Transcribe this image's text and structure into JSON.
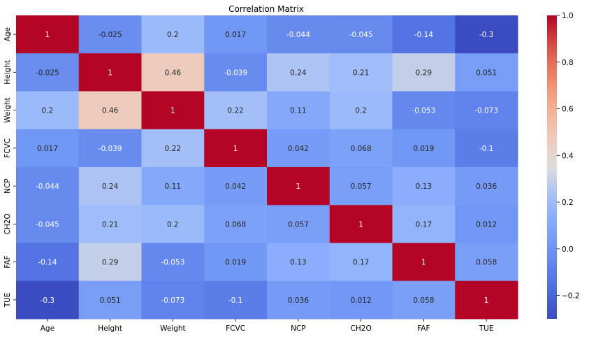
{
  "chart_data": {
    "type": "heatmap",
    "title": "Correlation Matrix",
    "labels": [
      "Age",
      "Height",
      "Weight",
      "FCVC",
      "NCP",
      "CH2O",
      "FAF",
      "TUE"
    ],
    "values": [
      [
        1,
        -0.025,
        0.2,
        0.017,
        -0.044,
        -0.045,
        -0.14,
        -0.3
      ],
      [
        -0.025,
        1,
        0.46,
        -0.039,
        0.24,
        0.21,
        0.29,
        0.051
      ],
      [
        0.2,
        0.46,
        1,
        0.22,
        0.11,
        0.2,
        -0.053,
        -0.073
      ],
      [
        0.017,
        -0.039,
        0.22,
        1,
        0.042,
        0.068,
        0.019,
        -0.1
      ],
      [
        -0.044,
        0.24,
        0.11,
        0.042,
        1,
        0.057,
        0.13,
        0.036
      ],
      [
        -0.045,
        0.21,
        0.2,
        0.068,
        0.057,
        1,
        0.17,
        0.012
      ],
      [
        -0.14,
        0.29,
        -0.053,
        0.019,
        0.13,
        0.17,
        1,
        0.058
      ],
      [
        -0.3,
        0.051,
        -0.073,
        -0.1,
        0.036,
        0.012,
        0.058,
        1
      ]
    ],
    "colormap": "coolwarm",
    "vmin": -0.3,
    "vmax": 1.0,
    "colorbar_ticks": [
      -0.2,
      0.0,
      0.2,
      0.4,
      0.6,
      0.8,
      1.0
    ],
    "colorbar_tick_labels": [
      "−0.2",
      "0.0",
      "0.2",
      "0.4",
      "0.6",
      "0.8",
      "1.0"
    ]
  }
}
